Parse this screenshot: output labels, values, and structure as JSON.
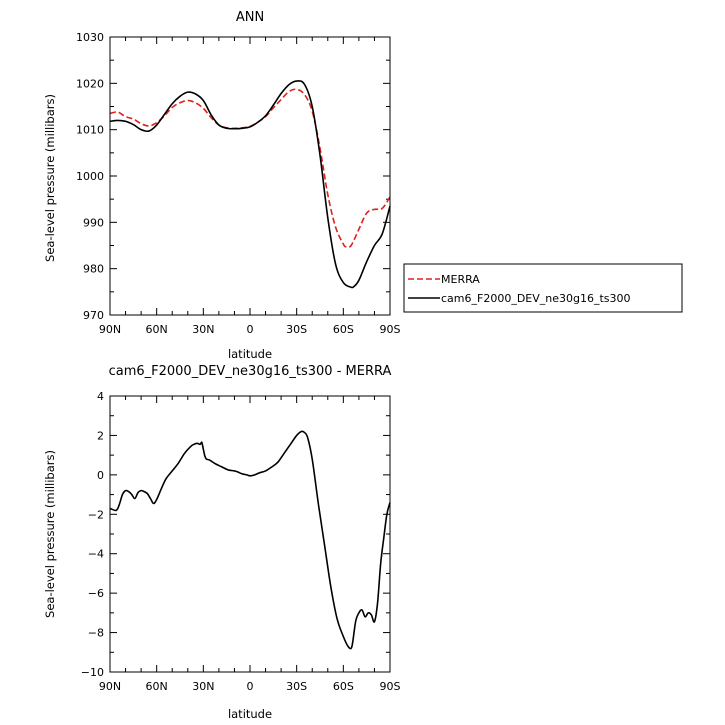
{
  "chart_data": [
    {
      "type": "line",
      "title": "ANN",
      "xlabel": "latitude",
      "ylabel": "Sea-level pressure (millibars)",
      "ylim": [
        970,
        1030
      ],
      "xlim": [
        90,
        -90
      ],
      "x_tick_values": [
        90,
        60,
        30,
        0,
        -30,
        -60,
        -90
      ],
      "x_tick_labels": [
        "90N",
        "60N",
        "30N",
        "0",
        "30S",
        "60S",
        "90S"
      ],
      "y_tick_values": [
        970,
        980,
        990,
        1000,
        1010,
        1020,
        1030
      ],
      "y_tick_labels": [
        "970",
        "980",
        "990",
        "1000",
        "1010",
        "1020",
        "1030"
      ],
      "grid": false,
      "legend_position": "outside-right",
      "series": [
        {
          "name": "MERRA",
          "color": "#e0201b",
          "dash": "dashed",
          "x": [
            90,
            85,
            80,
            75,
            70,
            65,
            60,
            55,
            50,
            45,
            40,
            35,
            30,
            25,
            20,
            15,
            10,
            5,
            0,
            -5,
            -10,
            -15,
            -20,
            -25,
            -30,
            -35,
            -40,
            -45,
            -50,
            -55,
            -60,
            -62,
            -65,
            -70,
            -75,
            -80,
            -85,
            -90
          ],
          "y": [
            1013.5,
            1013.8,
            1012.8,
            1012.3,
            1011.3,
            1010.8,
            1011.5,
            1013.0,
            1014.8,
            1015.8,
            1016.3,
            1015.8,
            1014.6,
            1012.6,
            1011.0,
            1010.4,
            1010.3,
            1010.4,
            1010.7,
            1011.6,
            1012.8,
            1014.7,
            1016.5,
            1018.2,
            1018.7,
            1017.6,
            1014.0,
            1006.0,
            996.0,
            989.0,
            985.3,
            984.7,
            985.0,
            988.5,
            992.0,
            992.8,
            993.0,
            995.5
          ]
        },
        {
          "name": "cam6_F2000_DEV_ne30g16_ts300",
          "color": "#000000",
          "dash": "solid",
          "x": [
            90,
            85,
            80,
            75,
            70,
            65,
            60,
            55,
            50,
            45,
            40,
            35,
            30,
            25,
            20,
            15,
            10,
            5,
            0,
            -5,
            -10,
            -15,
            -20,
            -25,
            -30,
            -35,
            -40,
            -45,
            -50,
            -55,
            -60,
            -65,
            -67,
            -70,
            -75,
            -80,
            -85,
            -90
          ],
          "y": [
            1011.8,
            1012.0,
            1011.8,
            1011.1,
            1010.0,
            1009.7,
            1011.0,
            1013.3,
            1015.6,
            1017.2,
            1018.1,
            1017.7,
            1016.3,
            1013.2,
            1011.0,
            1010.3,
            1010.2,
            1010.3,
            1010.6,
            1011.6,
            1013.0,
            1015.3,
            1017.8,
            1019.7,
            1020.5,
            1019.8,
            1015.0,
            1004.5,
            991.0,
            981.0,
            977.0,
            976.0,
            976.2,
            977.5,
            981.5,
            985.0,
            987.5,
            993.5
          ]
        }
      ]
    },
    {
      "type": "line",
      "title": "cam6_F2000_DEV_ne30g16_ts300 - MERRA",
      "xlabel": "latitude",
      "ylabel": "Sea-level pressure (millibars)",
      "ylim": [
        -10,
        4
      ],
      "xlim": [
        90,
        -90
      ],
      "x_tick_values": [
        90,
        60,
        30,
        0,
        -30,
        -60,
        -90
      ],
      "x_tick_labels": [
        "90N",
        "60N",
        "30N",
        "0",
        "30S",
        "60S",
        "90S"
      ],
      "y_tick_values": [
        -10,
        -8,
        -6,
        -4,
        -2,
        0,
        2,
        4
      ],
      "y_tick_labels": [
        "−10",
        "−8",
        "−6",
        "−4",
        "−2",
        "0",
        "2",
        "4"
      ],
      "grid": false,
      "series": [
        {
          "color": "#000000",
          "dash": "solid",
          "x": [
            90,
            86,
            84,
            82,
            80,
            78,
            76,
            74,
            72,
            70,
            68,
            66,
            64,
            62,
            60,
            57,
            54,
            50,
            46,
            42,
            38,
            36,
            34,
            32,
            31,
            30,
            29,
            28,
            26,
            22,
            18,
            14,
            10,
            8,
            5,
            2,
            0,
            -3,
            -6,
            -10,
            -14,
            -18,
            -22,
            -26,
            -30,
            -33,
            -35,
            -37,
            -40,
            -44,
            -48,
            -52,
            -56,
            -60,
            -63,
            -65,
            -66,
            -68,
            -70,
            -72,
            -74,
            -76,
            -78,
            -80,
            -82,
            -84,
            -86,
            -88,
            -90
          ],
          "y": [
            -1.7,
            -1.8,
            -1.5,
            -1.0,
            -0.8,
            -0.85,
            -1.0,
            -1.2,
            -0.9,
            -0.8,
            -0.85,
            -0.95,
            -1.2,
            -1.45,
            -1.25,
            -0.7,
            -0.2,
            0.2,
            0.6,
            1.1,
            1.45,
            1.55,
            1.6,
            1.55,
            1.65,
            1.3,
            0.95,
            0.8,
            0.75,
            0.55,
            0.4,
            0.25,
            0.2,
            0.15,
            0.05,
            0.0,
            -0.05,
            0.0,
            0.1,
            0.2,
            0.4,
            0.65,
            1.1,
            1.55,
            2.0,
            2.2,
            2.15,
            1.9,
            0.8,
            -1.5,
            -3.6,
            -5.7,
            -7.3,
            -8.2,
            -8.7,
            -8.8,
            -8.5,
            -7.4,
            -7.0,
            -6.85,
            -7.2,
            -7.0,
            -7.1,
            -7.45,
            -6.5,
            -4.5,
            -3.2,
            -2.0,
            -1.4
          ]
        }
      ]
    }
  ]
}
